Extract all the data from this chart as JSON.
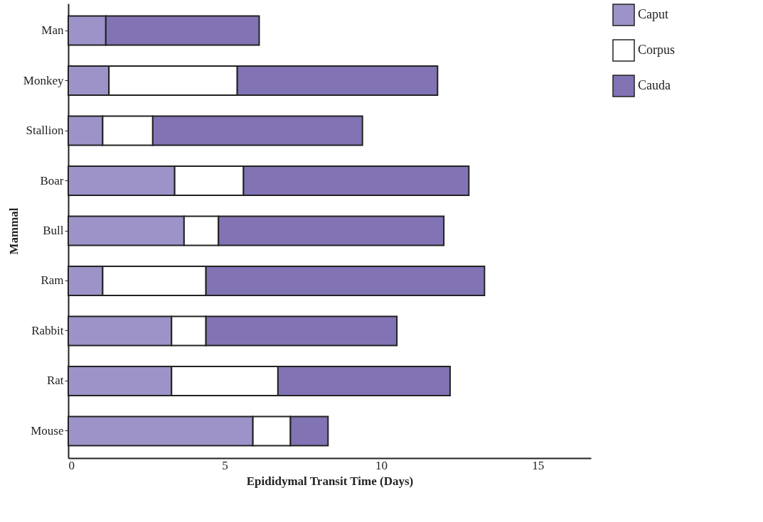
{
  "chart_data": {
    "type": "bar",
    "orientation": "horizontal",
    "stacked": true,
    "xlabel": "Epididymal Transit Time (Days)",
    "ylabel": "Mammal",
    "categories": [
      "Man",
      "Monkey",
      "Stallion",
      "Boar",
      "Bull",
      "Ram",
      "Rabbit",
      "Rat",
      "Mouse"
    ],
    "series": [
      {
        "name": "Caput",
        "color": "#9d93c9",
        "values": [
          1.2,
          1.3,
          1.1,
          3.4,
          3.7,
          1.1,
          3.3,
          3.3,
          5.9
        ]
      },
      {
        "name": "Corpus",
        "color": "#ffffff",
        "values": [
          null,
          4.1,
          1.6,
          2.2,
          1.1,
          3.3,
          1.1,
          3.4,
          1.2
        ]
      },
      {
        "name": "Cauda",
        "color": "#8273b5",
        "values": [
          4.9,
          6.4,
          6.7,
          7.2,
          7.2,
          8.9,
          6.1,
          5.5,
          1.2
        ]
      }
    ],
    "xlim": [
      0,
      16.7
    ],
    "xticks": [
      0,
      5,
      10,
      15
    ],
    "grid": false,
    "legend": "top right"
  }
}
